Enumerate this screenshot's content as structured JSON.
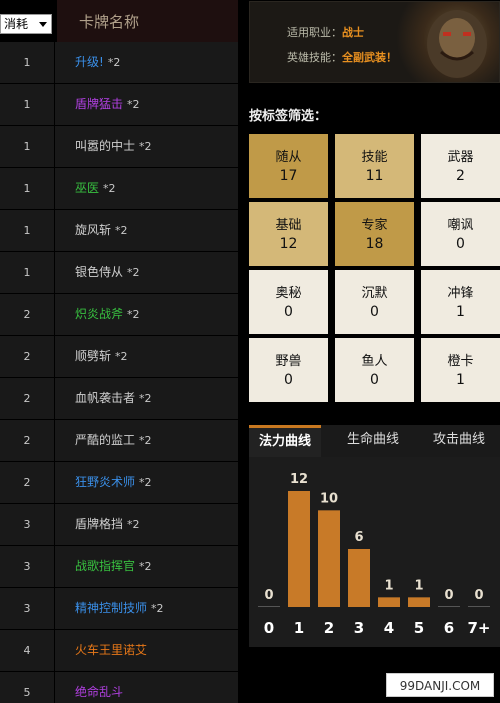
{
  "table": {
    "cost_select_value": "消耗",
    "name_header": "卡牌名称",
    "rows": [
      {
        "cost": "1",
        "name": "升级!",
        "count": "*2",
        "color": "#3a8fe8"
      },
      {
        "cost": "1",
        "name": "盾牌猛击",
        "count": "*2",
        "color": "#b040e0"
      },
      {
        "cost": "1",
        "name": "叫嚣的中士",
        "count": "*2",
        "color": "#d0d0d0"
      },
      {
        "cost": "1",
        "name": "巫医",
        "count": "*2",
        "color": "#38c040"
      },
      {
        "cost": "1",
        "name": "旋风斩",
        "count": "*2",
        "color": "#d0d0d0"
      },
      {
        "cost": "1",
        "name": "银色侍从",
        "count": "*2",
        "color": "#d0d0d0"
      },
      {
        "cost": "2",
        "name": "炽炎战斧",
        "count": "*2",
        "color": "#38c040"
      },
      {
        "cost": "2",
        "name": "顺劈斩",
        "count": "*2",
        "color": "#d0d0d0"
      },
      {
        "cost": "2",
        "name": "血帆袭击者",
        "count": "*2",
        "color": "#d0d0d0"
      },
      {
        "cost": "2",
        "name": "严酷的监工",
        "count": "*2",
        "color": "#d0d0d0"
      },
      {
        "cost": "2",
        "name": "狂野炎术师",
        "count": "*2",
        "color": "#3a8fe8"
      },
      {
        "cost": "3",
        "name": "盾牌格挡",
        "count": "*2",
        "color": "#d0d0d0"
      },
      {
        "cost": "3",
        "name": "战歌指挥官",
        "count": "*2",
        "color": "#38c040"
      },
      {
        "cost": "3",
        "name": "精神控制技师",
        "count": "*2",
        "color": "#3a8fe8"
      },
      {
        "cost": "4",
        "name": "火车王里诺艾",
        "count": "",
        "color": "#e87818"
      },
      {
        "cost": "5",
        "name": "绝命乱斗",
        "count": "",
        "color": "#b040e0"
      }
    ]
  },
  "hero": {
    "class_label": "适用职业：",
    "class_value": "战士",
    "skill_label": "英雄技能：",
    "skill_value": "全副武装！"
  },
  "filter": {
    "title": "按标签筛选：",
    "tags": [
      {
        "name": "随从",
        "count": "17",
        "bg": "#c09a48"
      },
      {
        "name": "技能",
        "count": "11",
        "bg": "#d4b878"
      },
      {
        "name": "武器",
        "count": "2",
        "bg": "#f0ebe0"
      },
      {
        "name": "基础",
        "count": "12",
        "bg": "#d4b878"
      },
      {
        "name": "专家",
        "count": "18",
        "bg": "#c09a48"
      },
      {
        "name": "嘲讽",
        "count": "0",
        "bg": "#f0ebe0"
      },
      {
        "name": "奥秘",
        "count": "0",
        "bg": "#f0ebe0"
      },
      {
        "name": "沉默",
        "count": "0",
        "bg": "#f0ebe0"
      },
      {
        "name": "冲锋",
        "count": "1",
        "bg": "#f0ebe0"
      },
      {
        "name": "野兽",
        "count": "0",
        "bg": "#f0ebe0"
      },
      {
        "name": "鱼人",
        "count": "0",
        "bg": "#f0ebe0"
      },
      {
        "name": "橙卡",
        "count": "1",
        "bg": "#f0ebe0"
      }
    ]
  },
  "tabs": [
    "法力曲线",
    "生命曲线",
    "攻击曲线"
  ],
  "chart_data": {
    "type": "bar",
    "categories": [
      "0",
      "1",
      "2",
      "3",
      "4",
      "5",
      "6",
      "7+"
    ],
    "values": [
      0,
      12,
      10,
      6,
      1,
      1,
      0,
      0
    ],
    "bar_color": "#c87a28",
    "value_color": "#e8e0d0",
    "label_color": "#ffffff"
  },
  "watermark": "99DANJI.COM"
}
